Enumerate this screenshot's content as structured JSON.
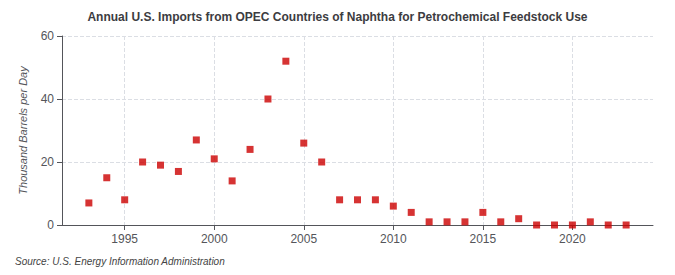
{
  "chart_data": {
    "type": "scatter",
    "title": "Annual U.S. Imports from OPEC Countries of Naphtha for Petrochemical Feedstock Use",
    "ylabel": "Thousand Barrels per Day",
    "source": "Source: U.S. Energy Information Administration",
    "x": [
      1993,
      1994,
      1995,
      1996,
      1997,
      1998,
      1999,
      2000,
      2001,
      2002,
      2003,
      2004,
      2005,
      2006,
      2007,
      2008,
      2009,
      2010,
      2011,
      2012,
      2013,
      2014,
      2015,
      2016,
      2017,
      2018,
      2019,
      2020,
      2021,
      2022,
      2023
    ],
    "values": [
      7,
      15,
      8,
      20,
      19,
      17,
      27,
      21,
      14,
      24,
      40,
      52,
      26,
      20,
      8,
      8,
      8,
      6,
      4,
      1,
      1,
      1,
      4,
      1,
      2,
      0,
      0,
      0,
      1,
      0,
      0
    ],
    "color": "#cc0000",
    "marker": "square",
    "xlim": [
      1991.5,
      2024.5
    ],
    "xticks": [
      1995,
      2000,
      2005,
      2010,
      2015,
      2020
    ],
    "ylim": [
      0,
      60
    ],
    "yticks": [
      0,
      20,
      40,
      60
    ],
    "grid": true
  }
}
